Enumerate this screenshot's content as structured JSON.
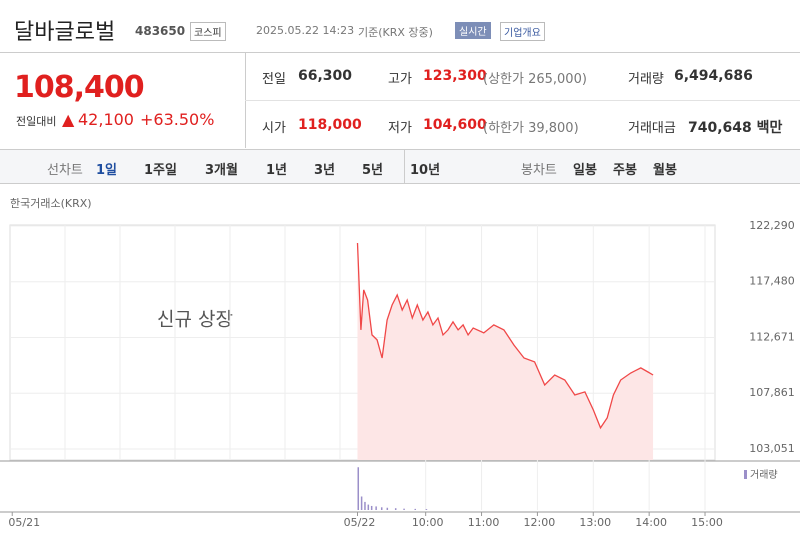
{
  "header": {
    "name": "달바글로벌",
    "code": "483650",
    "market": "코스피",
    "datetime": "2025.05.22 14:23",
    "basis": "기준(KRX 장중)",
    "realtime": "실시간",
    "overview": "기업개요"
  },
  "quote": {
    "price": "108,400",
    "change_label": "전일대비",
    "change": "42,100",
    "change_pct": "+63.50%"
  },
  "stats": [
    [
      {
        "label": "전일",
        "value": "66,300"
      },
      {
        "label": "고가",
        "value": "123,300",
        "note": "(상한가 265,000)"
      },
      {
        "label": "거래량",
        "value": "6,494,686"
      }
    ],
    [
      {
        "label": "시가",
        "value": "118,000"
      },
      {
        "label": "저가",
        "value": "104,600",
        "note": "(하한가 39,800)"
      },
      {
        "label": "거래대금",
        "value": "740,648 백만"
      }
    ]
  ],
  "tabs": {
    "line_label": "선차트",
    "line": [
      "1일",
      "1주일",
      "3개월",
      "1년",
      "3년",
      "5년",
      "10년"
    ],
    "candle_label": "봉차트",
    "candle": [
      "일봉",
      "주봉",
      "월봉"
    ]
  },
  "chart_data": {
    "type": "line",
    "source": "한국거래소(KRX)",
    "annotation": "신규 상장",
    "color": "#f04848",
    "fill": "#fde6e6",
    "x": [
      8.78,
      8.84,
      8.89,
      8.96,
      9.04,
      9.13,
      9.22,
      9.31,
      9.4,
      9.49,
      9.58,
      9.67,
      9.76,
      9.85,
      9.95,
      10.04,
      10.13,
      10.22,
      10.31,
      10.4,
      10.49,
      10.58,
      10.67,
      10.76,
      10.85,
      11.04,
      11.22,
      11.4,
      11.58,
      11.76,
      11.95,
      12.13,
      12.31,
      12.49,
      12.67,
      12.85,
      13.0,
      13.13,
      13.25,
      13.36,
      13.49,
      13.67,
      13.85,
      13.98,
      14.07
    ],
    "values": [
      120820,
      113320,
      116770,
      115900,
      112890,
      112460,
      110900,
      114180,
      115470,
      116340,
      115040,
      115900,
      114350,
      115470,
      114180,
      114870,
      113750,
      114350,
      112890,
      113320,
      114010,
      113320,
      113750,
      112890,
      113490,
      113060,
      113750,
      113320,
      112020,
      110900,
      110560,
      108570,
      109430,
      109000,
      107710,
      107970,
      106420,
      104870,
      105730,
      107710,
      109000,
      109600,
      110040,
      109690,
      109430
    ],
    "xlim": [
      2.56,
      16.7
    ],
    "xticks": [
      {
        "value": 2.6,
        "label": "05/21"
      },
      {
        "value": 8.78,
        "label": "05/22"
      },
      {
        "value": 10,
        "label": "10:00"
      },
      {
        "value": 11,
        "label": "11:00"
      },
      {
        "value": 12,
        "label": "12:00"
      },
      {
        "value": 13,
        "label": "13:00"
      },
      {
        "value": 14,
        "label": "14:00"
      },
      {
        "value": 15,
        "label": "15:00"
      }
    ],
    "ylim": [
      102100,
      122370
    ],
    "yticks": [
      {
        "value": 122290,
        "label": "122,290"
      },
      {
        "value": 117480,
        "label": "117,480"
      },
      {
        "value": 112671,
        "label": "112,671"
      },
      {
        "value": 107861,
        "label": "107,861"
      },
      {
        "value": 103051,
        "label": "103,051"
      }
    ],
    "volume": {
      "name": "거래량",
      "color": "#9b8fc9",
      "ylim": [
        0,
        1000000
      ],
      "x": [
        8.78,
        8.84,
        8.9,
        8.96,
        9.02,
        9.1,
        9.2,
        9.3,
        9.45,
        9.6,
        9.8,
        10.0
      ],
      "values": [
        950000,
        300000,
        180000,
        120000,
        90000,
        80000,
        60000,
        50000,
        40000,
        30000,
        25000,
        20000
      ]
    }
  }
}
